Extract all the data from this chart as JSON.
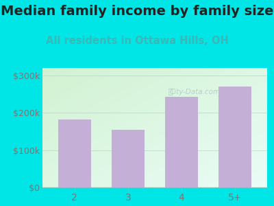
{
  "categories": [
    "2",
    "3",
    "4",
    "5+"
  ],
  "values": [
    182000,
    155000,
    243000,
    270000
  ],
  "bar_color": "#c4afd6",
  "title": "Median family income by family size",
  "subtitle": "All residents in Ottawa Hills, OH",
  "title_fontsize": 14,
  "subtitle_fontsize": 10.5,
  "title_color": "#222222",
  "subtitle_color": "#3ab8b8",
  "ylim": [
    0,
    320000
  ],
  "yticks": [
    0,
    100000,
    200000,
    300000
  ],
  "ytick_labels": [
    "$0",
    "$100k",
    "$200k",
    "$300k"
  ],
  "bg_outer": "#00e5e5",
  "watermark": "City-Data.com",
  "tick_color": "#777777",
  "spine_color": "#aaaaaa",
  "gradient_topleft": "#ceeece",
  "gradient_bottomright": "#e8f8f8"
}
